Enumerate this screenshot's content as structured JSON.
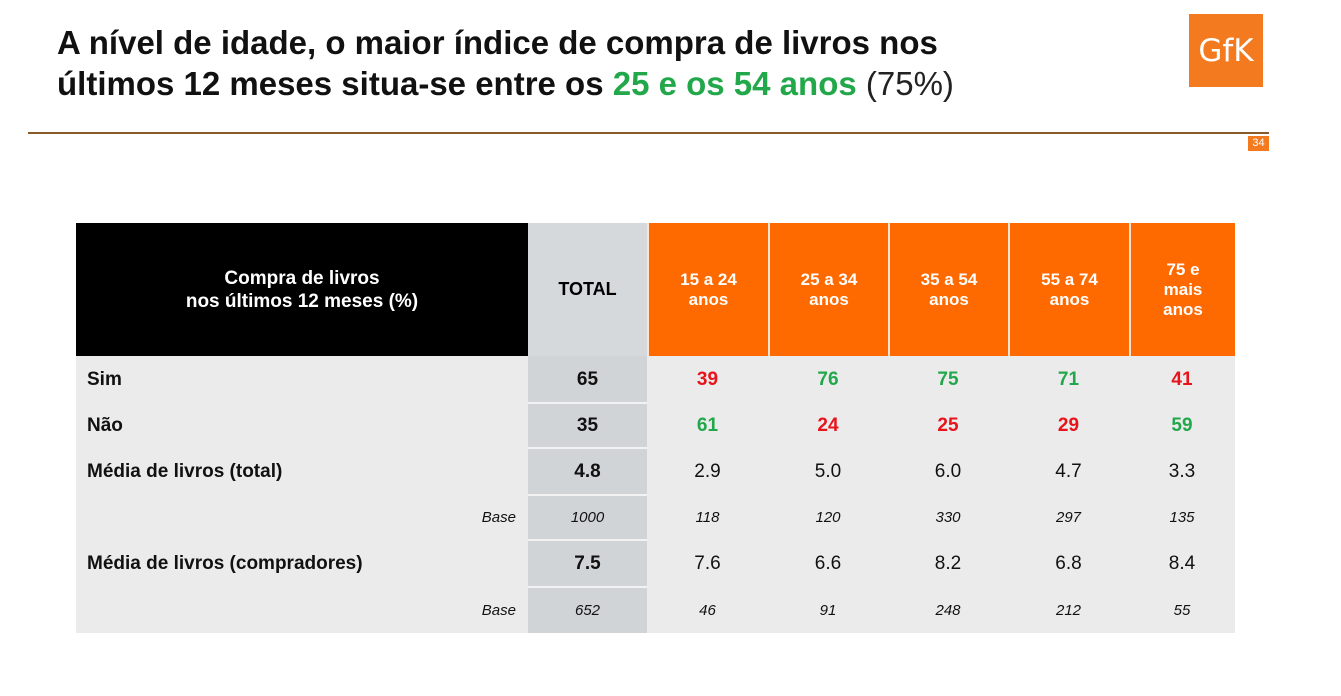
{
  "title": {
    "line1": "A nível de idade, o maior índice de compra de livros nos",
    "line2_start": "últimos 12 meses situa-se entre os ",
    "line2_highlight": "25 e os 54 anos",
    "line2_end": "(75%)"
  },
  "logo": {
    "text": "GfK"
  },
  "page_number": "34",
  "table": {
    "header_description": [
      "Compra de livros",
      "nos últimos 12 meses (%)"
    ],
    "header_total": "TOTAL",
    "age_groups": [
      [
        "15 a 24",
        "anos"
      ],
      [
        "25 a 34",
        "anos"
      ],
      [
        "35 a 54",
        "anos"
      ],
      [
        "55 a 74",
        "anos"
      ],
      [
        "75 e",
        "mais",
        "anos"
      ]
    ],
    "rows": [
      {
        "label": "Sim",
        "total": "65",
        "values": [
          "39",
          "76",
          "75",
          "71",
          "41"
        ],
        "colors": [
          "#e8141c",
          "#22a84a",
          "#22a84a",
          "#22a84a",
          "#e8141c"
        ]
      },
      {
        "label": "Não",
        "total": "35",
        "values": [
          "61",
          "24",
          "25",
          "29",
          "59"
        ],
        "colors": [
          "#22a84a",
          "#e8141c",
          "#e8141c",
          "#e8141c",
          "#22a84a"
        ]
      },
      {
        "label": "Média de livros (total)",
        "total": "4.8",
        "values": [
          "2.9",
          "5.0",
          "6.0",
          "4.7",
          "3.3"
        ]
      },
      {
        "label": "Base",
        "total": "1000",
        "values": [
          "118",
          "120",
          "330",
          "297",
          "135"
        ]
      },
      {
        "label": "Média de livros (compradores)",
        "total": "7.5",
        "values": [
          "7.6",
          "6.6",
          "8.2",
          "6.8",
          "8.4"
        ]
      },
      {
        "label": "Base",
        "total": "652",
        "values": [
          "46",
          "91",
          "248",
          "212",
          "55"
        ]
      }
    ]
  },
  "colors": {
    "orange": "#ff6a00",
    "logo_orange": "#f47a1f",
    "green": "#22a84a",
    "red": "#e8141c",
    "total_column": "#d0d4d7",
    "table_background": "#ebebeb"
  }
}
